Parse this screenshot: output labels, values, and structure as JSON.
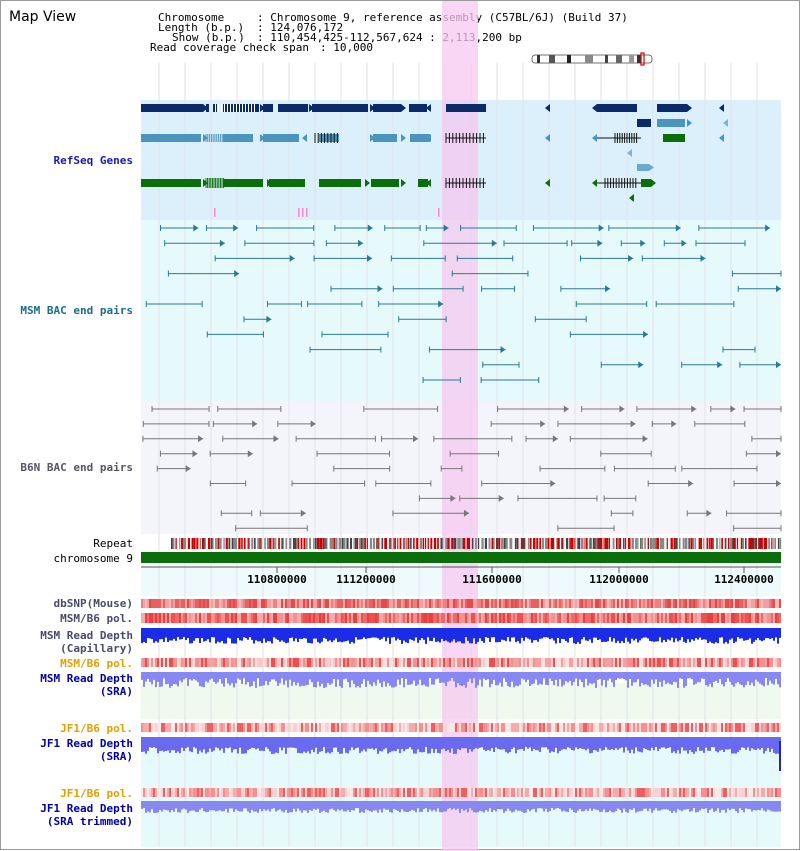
{
  "view_title": "Map View",
  "header": {
    "chromosome_key": "Chromosome",
    "chromosome_value": ": Chromosome 9, reference assembly (C57BL/6J) (Build 37)",
    "length_key": "Length (b.p.)",
    "length_value": ": 124,076,172",
    "show_key": "Show (b.p.)",
    "show_value": ": 110,454,425-112,567,624 : 2,113,200 bp",
    "coverage_key": "Read coverage check span",
    "coverage_value": ": 10,000"
  },
  "tracks": {
    "refseq": "RefSeq Genes",
    "msm_bac": "MSM BAC end pairs",
    "b6n_bac": "B6N BAC end pairs",
    "repeat": "Repeat",
    "chromosome": "chromosome 9",
    "dbsnp": "dbSNP(Mouse)",
    "msm_b6_pol_1": "MSM/B6 pol.",
    "msm_read_depth_cap_1": "MSM Read Depth",
    "msm_read_depth_cap_2": "(Capillary)",
    "msm_b6_pol_2": "MSM/B6 pol.",
    "msm_read_depth_sra_1": "MSM Read Depth",
    "msm_read_depth_sra_2": "(SRA)",
    "jf1_b6_pol_1": "JF1/B6 pol.",
    "jf1_read_depth_sra_1": "JF1 Read Depth",
    "jf1_read_depth_sra_2": "(SRA)",
    "jf1_b6_pol_2": "JF1/B6 pol.",
    "jf1_read_depth_trim_1": "JF1 Read Depth",
    "jf1_read_depth_trim_2": "(SRA trimmed)"
  },
  "axis": {
    "ticks": [
      "110800000",
      "111200000",
      "111600000",
      "112000000",
      "112400000"
    ]
  },
  "colors": {
    "refseq_bg": "#dbf0fa",
    "msm_bg": "#e6fafc",
    "b6n_bg": "#f4f4fb",
    "highlight": "#f5c8f0",
    "navy": "#0a2a6a",
    "steel": "#4a95c0",
    "green": "#0a6e0a",
    "bac_teal": "#2a7a95",
    "bac_gray": "#777777",
    "depth_blue": "#1a2ce6",
    "depth_light": "#8888f5"
  }
}
